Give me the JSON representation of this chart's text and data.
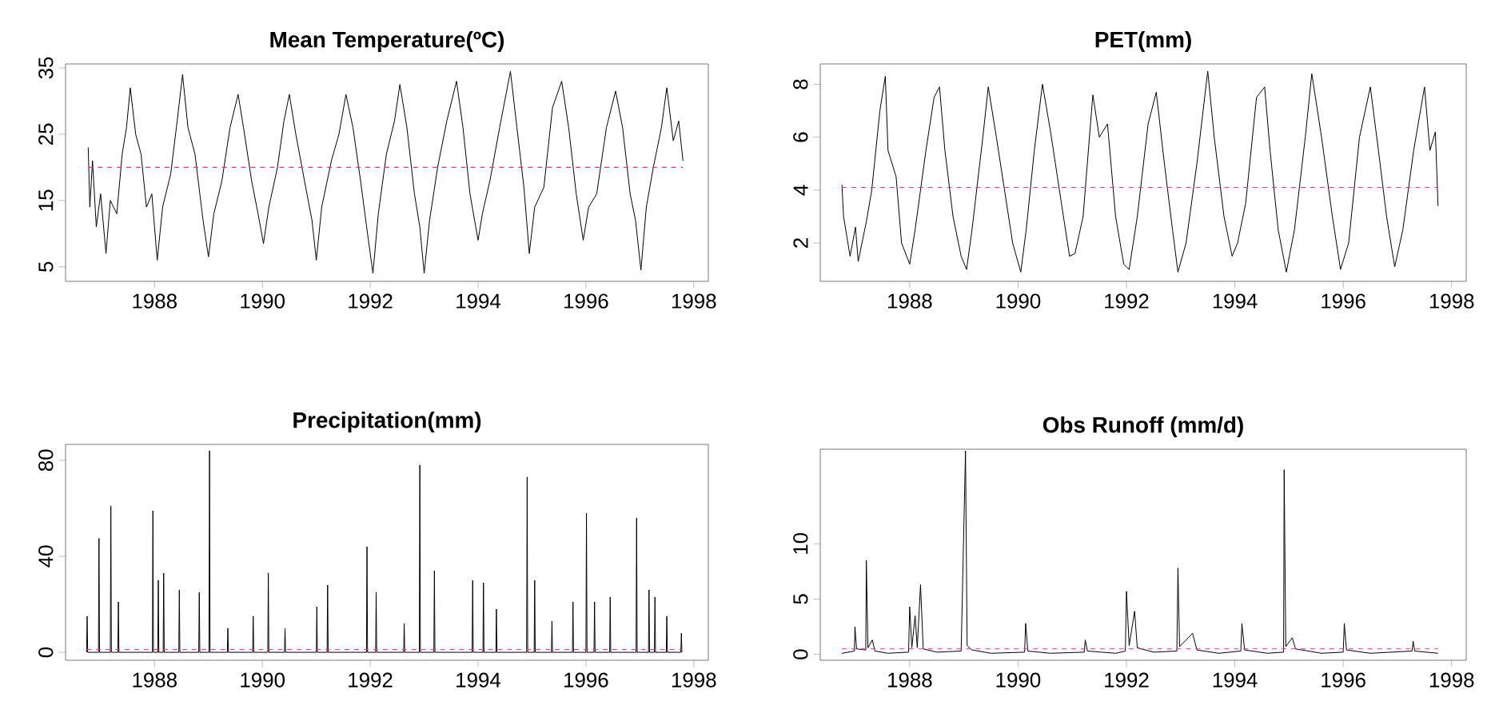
{
  "chart_data": [
    {
      "type": "line",
      "title": "Mean Temperature(ºC)",
      "xlim": [
        1986.35,
        1998.27
      ],
      "ylim": [
        2.8,
        35.6
      ],
      "xticks": [
        1988,
        1990,
        1992,
        1994,
        1996,
        1998
      ],
      "yticks": [
        5,
        15,
        25,
        35
      ],
      "series": [
        {
          "color": "#000000",
          "x": [
            1986.77,
            1986.8,
            1986.85,
            1986.92,
            1987.0,
            1987.1,
            1987.18,
            1987.3,
            1987.4,
            1987.48,
            1987.55,
            1987.65,
            1987.75,
            1987.85,
            1987.95,
            1988.05,
            1988.15,
            1988.3,
            1988.42,
            1988.52,
            1988.62,
            1988.75,
            1988.9,
            1989.0,
            1989.1,
            1989.25,
            1989.4,
            1989.55,
            1989.65,
            1989.8,
            1989.92,
            1990.02,
            1990.12,
            1990.28,
            1990.4,
            1990.5,
            1990.62,
            1990.78,
            1990.92,
            1991.0,
            1991.1,
            1991.28,
            1991.42,
            1991.55,
            1991.68,
            1991.82,
            1991.95,
            1992.05,
            1992.15,
            1992.3,
            1992.45,
            1992.55,
            1992.68,
            1992.82,
            1992.92,
            1993.0,
            1993.1,
            1993.25,
            1993.42,
            1993.6,
            1993.72,
            1993.85,
            1994.0,
            1994.08,
            1994.22,
            1994.4,
            1994.6,
            1994.72,
            1994.85,
            1994.95,
            1995.05,
            1995.22,
            1995.38,
            1995.55,
            1995.68,
            1995.82,
            1995.95,
            1996.05,
            1996.2,
            1996.38,
            1996.55,
            1996.68,
            1996.82,
            1996.92,
            1997.02,
            1997.12,
            1997.25,
            1997.4,
            1997.5,
            1997.62,
            1997.72,
            1997.8
          ],
          "values": [
            23,
            14,
            21,
            11,
            16,
            7,
            15,
            13,
            22,
            26,
            32,
            25,
            22,
            14,
            16,
            6,
            14,
            19,
            27,
            34,
            26,
            22,
            12,
            6.5,
            13,
            18,
            26,
            31,
            26,
            18,
            13,
            8.5,
            14,
            20,
            27,
            31,
            25,
            18,
            12,
            6,
            14,
            21,
            25,
            31,
            26,
            18,
            10,
            4,
            13,
            22,
            27,
            32.5,
            26,
            16,
            11,
            4,
            12,
            20,
            27,
            33,
            26,
            16,
            9,
            13,
            18,
            26,
            34.5,
            26,
            17,
            7,
            14,
            17,
            29,
            33,
            26,
            16,
            9,
            14,
            16,
            26,
            31.5,
            26,
            16,
            12,
            4.5,
            14,
            20,
            26,
            32,
            24,
            27,
            21
          ]
        }
      ],
      "ref_lines": [
        {
          "axis": "y",
          "value": 20,
          "color": "#ff3377",
          "line_style": "dashed"
        }
      ]
    },
    {
      "type": "line",
      "title": "PET(mm)",
      "xlim": [
        1986.35,
        1998.27
      ],
      "ylim": [
        0.55,
        8.77
      ],
      "xticks": [
        1988,
        1990,
        1992,
        1994,
        1996,
        1998
      ],
      "yticks": [
        2,
        4,
        6,
        8
      ],
      "series": [
        {
          "color": "#000000",
          "x": [
            1986.75,
            1986.78,
            1986.9,
            1987.0,
            1987.05,
            1987.2,
            1987.3,
            1987.45,
            1987.55,
            1987.6,
            1987.75,
            1987.85,
            1988.0,
            1988.1,
            1988.3,
            1988.45,
            1988.55,
            1988.65,
            1988.8,
            1988.95,
            1989.05,
            1989.15,
            1989.35,
            1989.45,
            1989.6,
            1989.75,
            1989.9,
            1990.05,
            1990.15,
            1990.3,
            1990.45,
            1990.6,
            1990.8,
            1990.95,
            1991.05,
            1991.2,
            1991.38,
            1991.5,
            1991.65,
            1991.8,
            1991.95,
            1992.05,
            1992.2,
            1992.4,
            1992.55,
            1992.7,
            1992.85,
            1992.95,
            1993.1,
            1993.3,
            1993.5,
            1993.62,
            1993.8,
            1993.95,
            1994.05,
            1994.2,
            1994.4,
            1994.55,
            1994.65,
            1994.8,
            1994.95,
            1995.1,
            1995.3,
            1995.42,
            1995.6,
            1995.8,
            1995.95,
            1996.1,
            1996.3,
            1996.5,
            1996.65,
            1996.8,
            1996.95,
            1997.1,
            1997.3,
            1997.5,
            1997.6,
            1997.7,
            1997.75
          ],
          "values": [
            4.2,
            3.0,
            1.5,
            2.6,
            1.3,
            2.8,
            4.0,
            7.0,
            8.3,
            5.5,
            4.5,
            2.0,
            1.2,
            2.5,
            5.5,
            7.5,
            7.9,
            5.5,
            3.0,
            1.5,
            1.0,
            2.5,
            6.0,
            7.9,
            6.0,
            4.0,
            2.0,
            0.9,
            2.5,
            5.5,
            8.0,
            6.2,
            3.5,
            1.5,
            1.6,
            3.0,
            7.6,
            6.0,
            6.5,
            3.0,
            1.2,
            1.0,
            3.0,
            6.5,
            7.7,
            5.0,
            2.5,
            0.9,
            2.0,
            5.0,
            8.5,
            6.0,
            3.0,
            1.5,
            2.0,
            3.5,
            7.5,
            7.9,
            5.5,
            2.5,
            0.9,
            2.5,
            6.0,
            8.4,
            6.0,
            3.0,
            1.0,
            2.0,
            6.0,
            7.9,
            5.5,
            3.0,
            1.1,
            2.5,
            5.5,
            7.9,
            5.5,
            6.2,
            3.4
          ]
        }
      ],
      "ref_lines": [
        {
          "axis": "y",
          "value": 4.1,
          "color": "#ff3377",
          "line_style": "dashed"
        }
      ]
    },
    {
      "type": "line",
      "title": "Precipitation(mm)",
      "xlim": [
        1986.35,
        1998.27
      ],
      "ylim": [
        -3.3,
        86.6
      ],
      "xticks": [
        1988,
        1990,
        1992,
        1994,
        1996,
        1998
      ],
      "yticks": [
        0,
        40,
        80
      ],
      "series": [
        {
          "color": "#000000",
          "x": [
            1986.74,
            1986.75,
            1986.76,
            1986.96,
            1986.97,
            1986.98,
            1987.18,
            1987.19,
            1987.2,
            1987.32,
            1987.33,
            1987.34,
            1987.96,
            1987.97,
            1987.98,
            1988.06,
            1988.07,
            1988.08,
            1988.16,
            1988.17,
            1988.18,
            1988.45,
            1988.46,
            1988.47,
            1988.82,
            1988.83,
            1988.84,
            1989.01,
            1989.02,
            1989.03,
            1989.35,
            1989.36,
            1989.37,
            1989.82,
            1989.83,
            1989.84,
            1990.1,
            1990.11,
            1990.12,
            1990.41,
            1990.42,
            1990.43,
            1991.0,
            1991.01,
            1991.02,
            1991.2,
            1991.21,
            1991.22,
            1991.93,
            1991.94,
            1991.95,
            1992.1,
            1992.11,
            1992.12,
            1992.62,
            1992.63,
            1992.64,
            1992.91,
            1992.92,
            1992.93,
            1993.18,
            1993.19,
            1993.2,
            1993.89,
            1993.9,
            1993.91,
            1994.09,
            1994.1,
            1994.11,
            1994.33,
            1994.34,
            1994.35,
            1994.9,
            1994.91,
            1994.92,
            1995.04,
            1995.05,
            1995.06,
            1995.36,
            1995.37,
            1995.38,
            1995.75,
            1995.76,
            1995.77,
            1996.0,
            1996.01,
            1996.02,
            1996.15,
            1996.16,
            1996.17,
            1996.44,
            1996.45,
            1996.46,
            1996.93,
            1996.94,
            1996.95,
            1997.16,
            1997.17,
            1997.18,
            1997.27,
            1997.28,
            1997.29,
            1997.49,
            1997.5,
            1997.51,
            1997.76,
            1997.77,
            1997.78
          ],
          "values": [
            0,
            15,
            0,
            0,
            47.5,
            0,
            0,
            61,
            0,
            0,
            21,
            0,
            0,
            59,
            0,
            0,
            30,
            0,
            0,
            33,
            0,
            0,
            26,
            0,
            0,
            25,
            0,
            0,
            84,
            0,
            0,
            10,
            0,
            0,
            15,
            0,
            0,
            33,
            0,
            0,
            10,
            0,
            0,
            19,
            0,
            0,
            28,
            0,
            0,
            44,
            0,
            0,
            25,
            0,
            0,
            12,
            0,
            0,
            78,
            0,
            0,
            34,
            0,
            0,
            30,
            0,
            0,
            29,
            0,
            0,
            18,
            0,
            0,
            73,
            0,
            0,
            30,
            0,
            0,
            13,
            0,
            0,
            21,
            0,
            0,
            58,
            0,
            0,
            21,
            0,
            0,
            23,
            0,
            0,
            56,
            0,
            0,
            26,
            0,
            0,
            23,
            0,
            0,
            15,
            0,
            0,
            8,
            0
          ]
        }
      ],
      "ref_lines": [
        {
          "axis": "y",
          "value": 1.2,
          "color": "#ff3377",
          "line_style": "dashed"
        }
      ]
    },
    {
      "type": "line",
      "title": "Obs Runoff (mm/d)",
      "xlim": [
        1986.35,
        1998.27
      ],
      "ylim": [
        -0.53,
        18.55
      ],
      "xticks": [
        1988,
        1990,
        1992,
        1994,
        1996,
        1998
      ],
      "yticks": [
        0,
        5,
        10
      ],
      "series": [
        {
          "color": "#000000",
          "x": [
            1986.75,
            1986.98,
            1986.99,
            1987.02,
            1987.19,
            1987.2,
            1987.23,
            1987.31,
            1987.36,
            1987.6,
            1987.98,
            1988.0,
            1988.04,
            1988.1,
            1988.14,
            1988.2,
            1988.25,
            1988.5,
            1988.95,
            1989.03,
            1989.06,
            1989.15,
            1989.5,
            1990.12,
            1990.14,
            1990.18,
            1990.6,
            1991.22,
            1991.24,
            1991.28,
            1991.8,
            1991.98,
            1992.0,
            1992.05,
            1992.15,
            1992.2,
            1992.5,
            1992.93,
            1992.95,
            1992.98,
            1993.22,
            1993.3,
            1993.7,
            1994.11,
            1994.13,
            1994.18,
            1994.6,
            1994.9,
            1994.91,
            1994.94,
            1995.06,
            1995.12,
            1995.6,
            1996.0,
            1996.02,
            1996.06,
            1996.5,
            1997.27,
            1997.29,
            1997.32,
            1997.75
          ],
          "values": [
            0.1,
            0.3,
            2.5,
            0.5,
            0.4,
            8.5,
            0.6,
            1.3,
            0.3,
            0.1,
            0.2,
            4.3,
            0.6,
            3.5,
            0.6,
            6.3,
            0.5,
            0.2,
            0.3,
            18.4,
            0.8,
            0.4,
            0.1,
            0.2,
            2.8,
            0.3,
            0.1,
            0.2,
            1.3,
            0.3,
            0.1,
            0.3,
            5.7,
            0.8,
            3.9,
            0.6,
            0.2,
            0.3,
            7.8,
            0.7,
            1.9,
            0.4,
            0.1,
            0.3,
            2.8,
            0.4,
            0.1,
            0.2,
            16.7,
            0.7,
            1.5,
            0.5,
            0.1,
            0.2,
            2.8,
            0.4,
            0.1,
            0.3,
            1.2,
            0.3,
            0.1
          ]
        }
      ],
      "ref_lines": [
        {
          "axis": "y",
          "value": 0.5,
          "color": "#ff3377",
          "line_style": "dashed"
        }
      ]
    }
  ]
}
